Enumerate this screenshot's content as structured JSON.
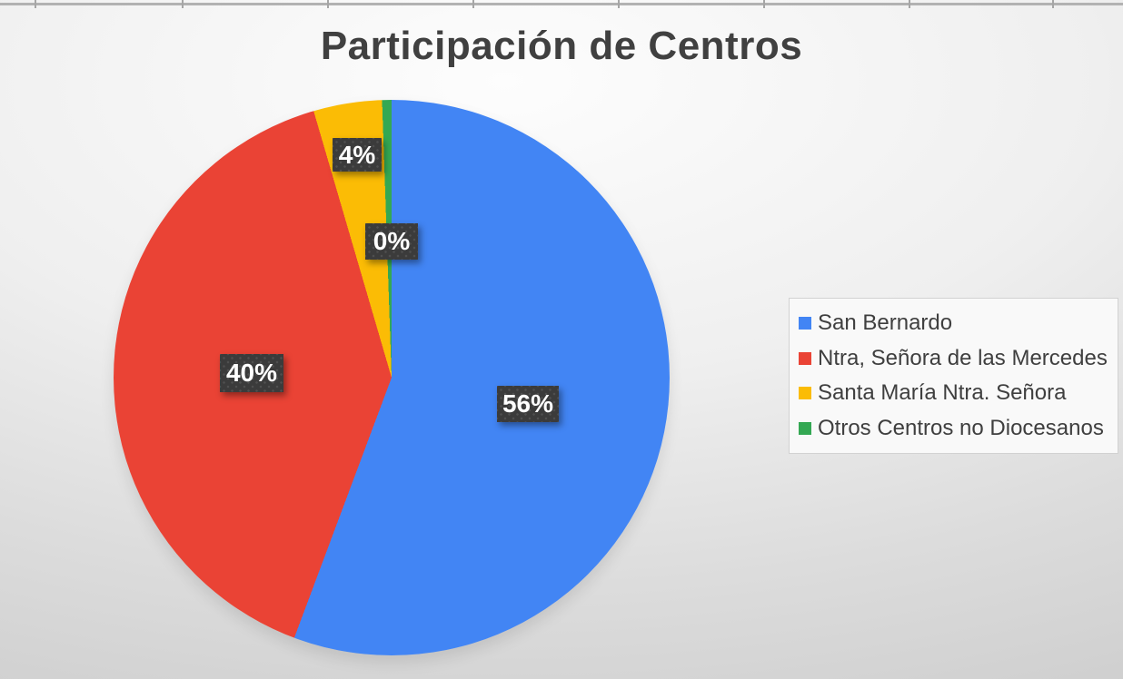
{
  "chart_data": {
    "type": "pie",
    "title": "Participación de Centros",
    "legend_position": "right",
    "start_angle_deg": 0,
    "direction": "clockwise",
    "slices": [
      {
        "label": "San Bernardo",
        "percent": 56,
        "data_label": "56%",
        "color": "#4285F4"
      },
      {
        "label": "Ntra, Señora de las Mercedes",
        "percent": 40,
        "data_label": "40%",
        "color": "#EA4335"
      },
      {
        "label": "Santa María Ntra. Señora",
        "percent": 4,
        "data_label": "4%",
        "color": "#FBBC05"
      },
      {
        "label": "Otros Centros no Diocesanos",
        "percent": 0,
        "data_label": "0%",
        "color": "#34A853"
      }
    ]
  },
  "colors": {
    "title_text": "#404040",
    "data_label_bg": "#3B3B3B",
    "data_label_text": "#FFFFFF",
    "legend_bg": "#F9F9F9",
    "legend_border": "#D2D2D2",
    "legend_text": "#3F3F3F"
  }
}
